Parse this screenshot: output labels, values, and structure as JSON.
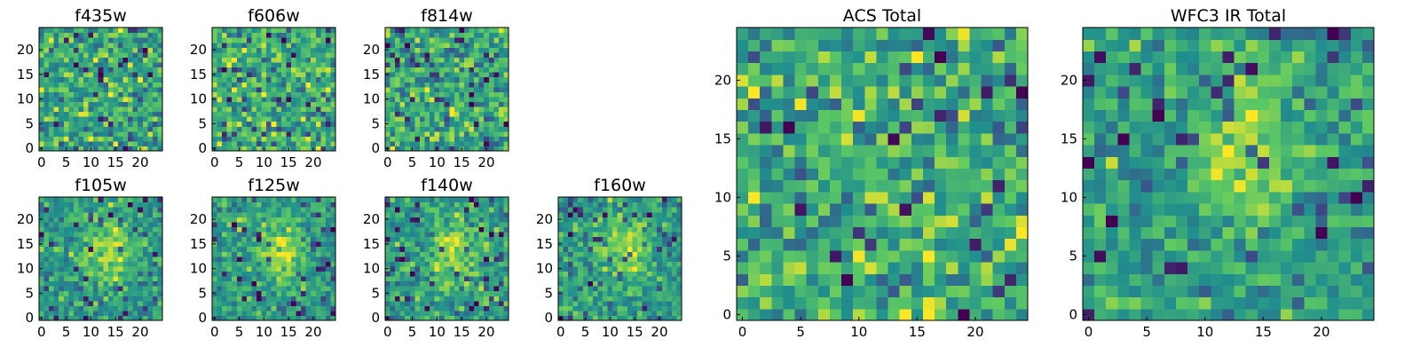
{
  "chart_data": [
    {
      "type": "heatmap",
      "title": "f435w",
      "seed": 11,
      "kind": "noise",
      "xticks": [
        0,
        5,
        10,
        15,
        20
      ],
      "yticks": [
        0,
        5,
        10,
        15,
        20
      ],
      "xlim": [
        0,
        24
      ],
      "ylim": [
        0,
        24
      ],
      "colormap": "viridis"
    },
    {
      "type": "heatmap",
      "title": "f606w",
      "seed": 23,
      "kind": "noise",
      "xticks": [
        0,
        5,
        10,
        15,
        20
      ],
      "yticks": [
        0,
        5,
        10,
        15,
        20
      ],
      "xlim": [
        0,
        24
      ],
      "ylim": [
        0,
        24
      ],
      "colormap": "viridis"
    },
    {
      "type": "heatmap",
      "title": "f814w",
      "seed": 37,
      "kind": "noise",
      "xticks": [
        0,
        5,
        10,
        15,
        20
      ],
      "yticks": [
        0,
        5,
        10,
        15,
        20
      ],
      "xlim": [
        0,
        24
      ],
      "ylim": [
        0,
        24
      ],
      "colormap": "viridis"
    },
    {
      "type": "heatmap",
      "title": "f105w",
      "seed": 41,
      "kind": "source",
      "xticks": [
        0,
        5,
        10,
        15,
        20
      ],
      "yticks": [
        0,
        5,
        10,
        15,
        20
      ],
      "xlim": [
        0,
        24
      ],
      "ylim": [
        0,
        24
      ],
      "colormap": "viridis"
    },
    {
      "type": "heatmap",
      "title": "f125w",
      "seed": 53,
      "kind": "source",
      "xticks": [
        0,
        5,
        10,
        15,
        20
      ],
      "yticks": [
        0,
        5,
        10,
        15,
        20
      ],
      "xlim": [
        0,
        24
      ],
      "ylim": [
        0,
        24
      ],
      "colormap": "viridis"
    },
    {
      "type": "heatmap",
      "title": "f140w",
      "seed": 67,
      "kind": "source",
      "xticks": [
        0,
        5,
        10,
        15,
        20
      ],
      "yticks": [
        0,
        5,
        10,
        15,
        20
      ],
      "xlim": [
        0,
        24
      ],
      "ylim": [
        0,
        24
      ],
      "colormap": "viridis"
    },
    {
      "type": "heatmap",
      "title": "f160w",
      "seed": 79,
      "kind": "source",
      "xticks": [
        0,
        5,
        10,
        15,
        20
      ],
      "yticks": [
        0,
        5,
        10,
        15,
        20
      ],
      "xlim": [
        0,
        24
      ],
      "ylim": [
        0,
        24
      ],
      "colormap": "viridis"
    },
    {
      "type": "heatmap",
      "title": "ACS Total",
      "seed": 83,
      "kind": "noise",
      "xticks": [
        0,
        5,
        10,
        15,
        20
      ],
      "yticks": [
        0,
        5,
        10,
        15,
        20
      ],
      "xlim": [
        0,
        24
      ],
      "ylim": [
        0,
        24
      ],
      "colormap": "viridis"
    },
    {
      "type": "heatmap",
      "title": "WFC3 IR Total",
      "seed": 97,
      "kind": "source",
      "xticks": [
        0,
        5,
        10,
        15,
        20
      ],
      "yticks": [
        0,
        5,
        10,
        15,
        20
      ],
      "xlim": [
        0,
        24
      ],
      "ylim": [
        0,
        24
      ],
      "colormap": "viridis"
    }
  ],
  "colormap": [
    "#440154",
    "#3b528b",
    "#21908d",
    "#5dc963",
    "#fde725"
  ]
}
